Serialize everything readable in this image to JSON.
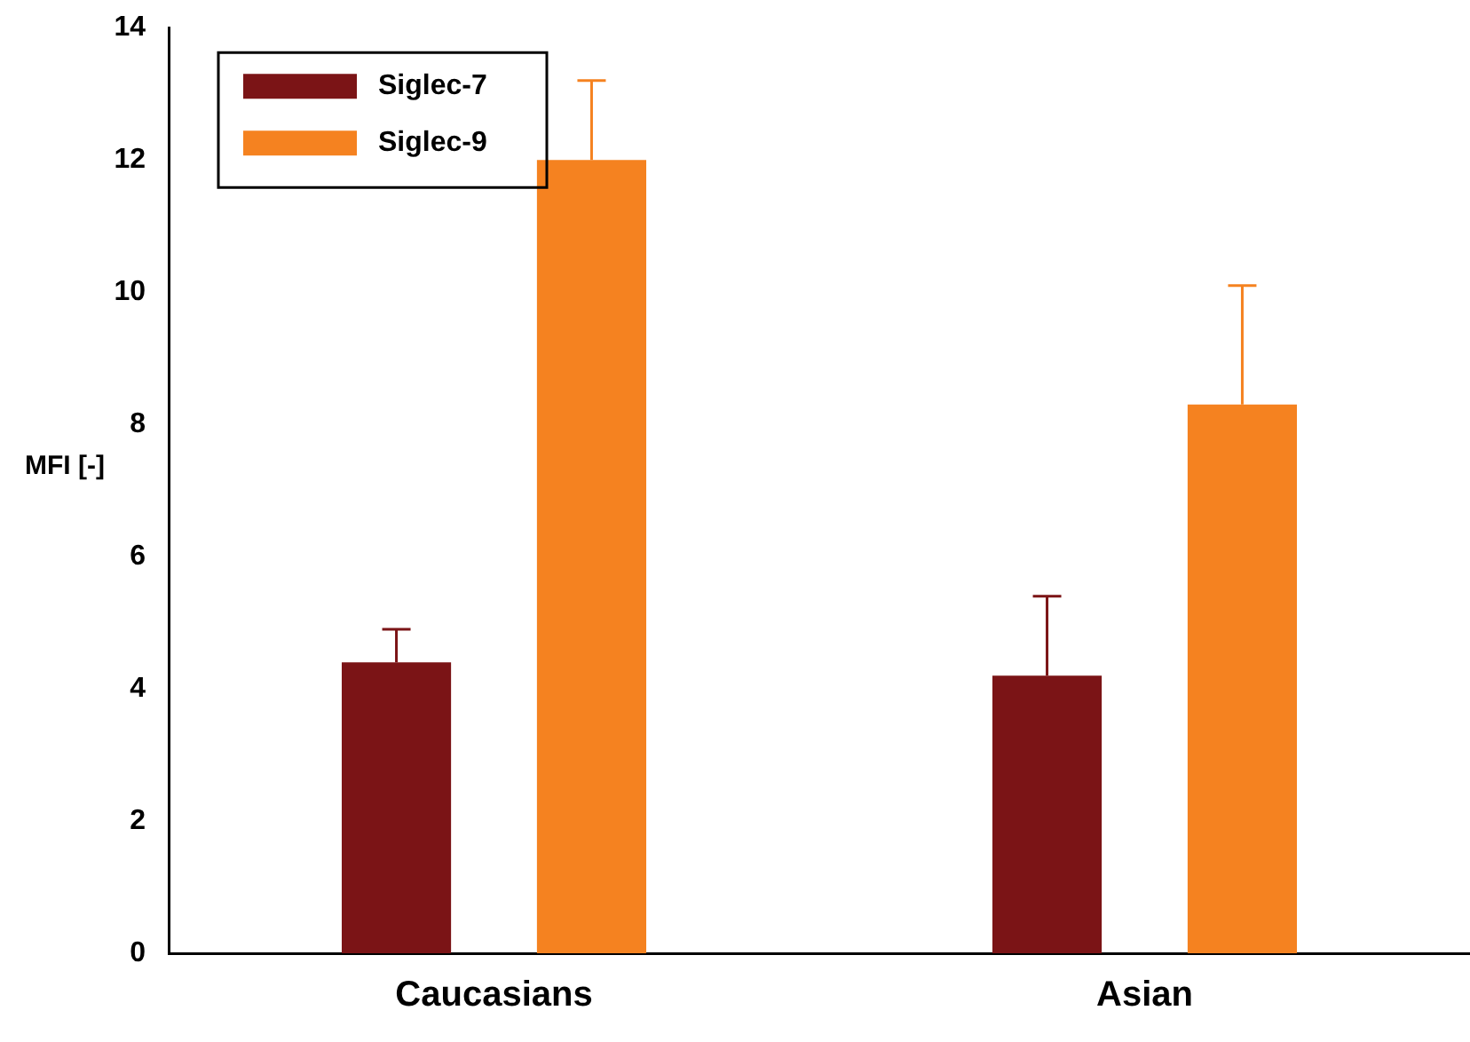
{
  "chart_data": {
    "type": "bar",
    "ylabel": "MFI [-]",
    "categories": [
      "Caucasians",
      "Asian"
    ],
    "series": [
      {
        "name": "Siglec-7",
        "color": "#7b1416",
        "values": [
          4.4,
          4.2
        ],
        "errors": [
          [
            4.4,
            4.9
          ],
          [
            4.2,
            5.4
          ]
        ]
      },
      {
        "name": "Siglec-9",
        "color": "#f58220",
        "values": [
          12.0,
          8.3
        ],
        "errors": [
          [
            12.0,
            13.2
          ],
          [
            8.3,
            10.1
          ]
        ]
      }
    ],
    "ylim": [
      0,
      14
    ],
    "yticks": [
      0,
      2,
      4,
      6,
      8,
      10,
      12,
      14
    ],
    "grid": false,
    "legend": "top left"
  }
}
